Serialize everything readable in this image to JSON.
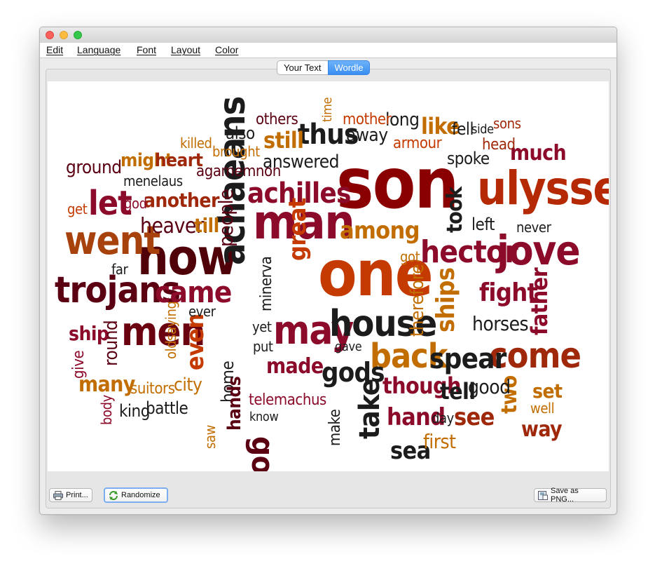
{
  "menu": [
    "Edit",
    "Language",
    "Font",
    "Layout",
    "Color"
  ],
  "tabs": [
    "Your Text",
    "Wordle"
  ],
  "buttons": {
    "print": "Print...",
    "randomize": "Randomize",
    "save": "Save as PNG..."
  },
  "colors": {
    "accent": "#3a8ef3",
    "dark_red": "#6b0010",
    "brown_red": "#a0280a",
    "orange": "#c26d00",
    "maroon": "#5a0012"
  },
  "words": [
    "son",
    "ulysses",
    "man",
    "one",
    "now",
    "went",
    "trojans",
    "jove",
    "hector",
    "achaeans",
    "men",
    "may",
    "house",
    "let",
    "achilles",
    "came",
    "great",
    "back",
    "come",
    "spear",
    "ships",
    "thus",
    "among",
    "took",
    "father",
    "fight",
    "heaven",
    "people",
    "minerva",
    "made",
    "gods",
    "though",
    "hand",
    "go",
    "take",
    "see",
    "even",
    "two",
    "set",
    "way",
    "therefore",
    "sea",
    "first",
    "horses",
    "tell",
    "good",
    "still",
    "answered",
    "like",
    "long",
    "away",
    "others",
    "also",
    "killed",
    "brought",
    "might",
    "heart",
    "ground",
    "agamemnon",
    "menelaus",
    "another",
    "get",
    "god",
    "till",
    "left",
    "never",
    "far",
    "ship",
    "give",
    "round",
    "old",
    "saying",
    "ever",
    "yet",
    "put",
    "many",
    "suitors",
    "city",
    "home",
    "hands",
    "telemachus",
    "know",
    "make",
    "gave",
    "body",
    "king",
    "battle",
    "saw",
    "day",
    "well",
    "time",
    "mother",
    "armour",
    "fell",
    "side",
    "sons",
    "head",
    "much",
    "spoke",
    "got"
  ]
}
